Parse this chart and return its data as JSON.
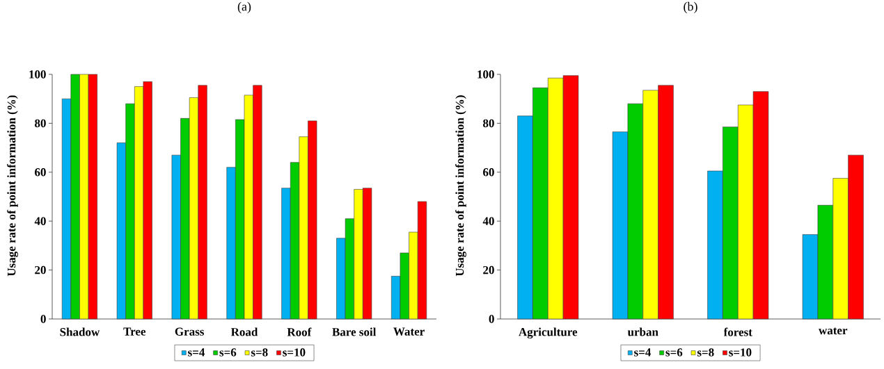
{
  "chart_data": [
    {
      "type": "bar",
      "title": "(a)",
      "ylabel": "Usage rate of point information (%)",
      "categories": [
        "Shadow",
        "Tree",
        "Grass",
        "Road",
        "Roof",
        "Bare soil",
        "Water"
      ],
      "series": [
        {
          "name": "s=4",
          "color": "#00b0f0",
          "values": [
            90,
            72,
            67,
            62,
            53.5,
            33,
            17.5
          ]
        },
        {
          "name": "s=6",
          "color": "#00cc00",
          "values": [
            100,
            88,
            82,
            81.5,
            64,
            41,
            27
          ]
        },
        {
          "name": "s=8",
          "color": "#ffff00",
          "values": [
            100,
            95,
            90.5,
            91.5,
            74.5,
            53,
            35.5
          ]
        },
        {
          "name": "s=10",
          "color": "#ff0000",
          "values": [
            100,
            97,
            95.5,
            95.5,
            81,
            53.5,
            48
          ]
        }
      ],
      "ylim": [
        0,
        100
      ],
      "yticks": [
        0,
        20,
        40,
        60,
        80,
        100
      ],
      "legend": "bottom"
    },
    {
      "type": "bar",
      "title": "(b)",
      "ylabel": "Usage rate of point information (%)",
      "categories": [
        "Agriculture",
        "urban",
        "forest",
        "water"
      ],
      "series": [
        {
          "name": "s=4",
          "color": "#00b0f0",
          "values": [
            83,
            76.5,
            60.5,
            34.5
          ]
        },
        {
          "name": "s=6",
          "color": "#00cc00",
          "values": [
            94.5,
            88,
            78.5,
            46.5
          ]
        },
        {
          "name": "s=8",
          "color": "#ffff00",
          "values": [
            98.5,
            93.5,
            87.5,
            57.5
          ]
        },
        {
          "name": "s=10",
          "color": "#ff0000",
          "values": [
            99.5,
            95.5,
            93,
            67
          ]
        }
      ],
      "ylim": [
        0,
        100
      ],
      "yticks": [
        0,
        20,
        40,
        60,
        80,
        100
      ],
      "legend": "bottom"
    }
  ]
}
